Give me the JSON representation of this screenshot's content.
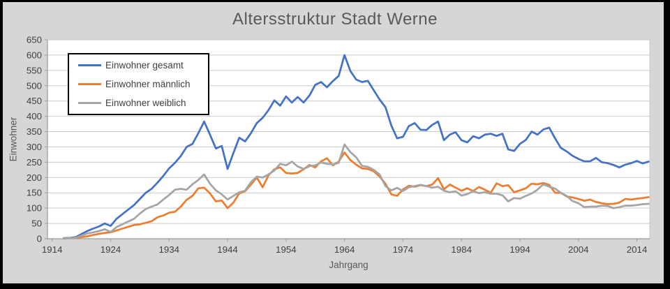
{
  "window": {
    "background_color": "#d6d6d6",
    "border_color": "#000000"
  },
  "text_colors": {
    "title": "#595959",
    "axis_titles": "#595959",
    "tick_labels": "#404040",
    "legend_labels": "#3f3f3f"
  },
  "chart_data": {
    "type": "line",
    "title": "Altersstruktur Stadt Werne",
    "xlabel": "Jahrgang",
    "ylabel": "Einwohner",
    "xlim": [
      1913.2,
      2016.2
    ],
    "ylim": [
      0,
      650
    ],
    "xticks": [
      1914,
      1924,
      1934,
      1944,
      1954,
      1964,
      1974,
      1984,
      1994,
      2004,
      2014
    ],
    "yticks": [
      0,
      50,
      100,
      150,
      200,
      250,
      300,
      350,
      400,
      450,
      500,
      550,
      600,
      650
    ],
    "grid": true,
    "gridline_color": "#c9c9c9",
    "axis_line_color": "#9b9b9b",
    "plot_background": "#ffffff",
    "legend_position": "top-left-inside",
    "x": [
      1916,
      1917,
      1918,
      1919,
      1920,
      1921,
      1922,
      1923,
      1924,
      1925,
      1926,
      1927,
      1928,
      1929,
      1930,
      1931,
      1932,
      1933,
      1934,
      1935,
      1936,
      1937,
      1938,
      1939,
      1940,
      1941,
      1942,
      1943,
      1944,
      1945,
      1946,
      1947,
      1948,
      1949,
      1950,
      1951,
      1952,
      1953,
      1954,
      1955,
      1956,
      1957,
      1958,
      1959,
      1960,
      1961,
      1962,
      1963,
      1964,
      1965,
      1966,
      1967,
      1968,
      1969,
      1970,
      1971,
      1972,
      1973,
      1974,
      1975,
      1976,
      1977,
      1978,
      1979,
      1980,
      1981,
      1982,
      1983,
      1984,
      1985,
      1986,
      1987,
      1988,
      1989,
      1990,
      1991,
      1992,
      1993,
      1994,
      1995,
      1996,
      1997,
      1998,
      1999,
      2000,
      2001,
      2002,
      2003,
      2004,
      2005,
      2006,
      2007,
      2008,
      2009,
      2010,
      2011,
      2012,
      2013,
      2014,
      2015,
      2016
    ],
    "series": [
      {
        "name": "Einwohner gesamt",
        "color": "#4472c4",
        "values": [
          2,
          3,
          5,
          15,
          25,
          33,
          40,
          50,
          42,
          65,
          80,
          95,
          110,
          130,
          150,
          163,
          183,
          205,
          230,
          248,
          270,
          300,
          310,
          345,
          383,
          340,
          295,
          303,
          228,
          280,
          330,
          318,
          345,
          378,
          395,
          420,
          452,
          435,
          465,
          445,
          463,
          445,
          468,
          503,
          512,
          495,
          515,
          532,
          600,
          548,
          520,
          512,
          516,
          485,
          455,
          430,
          370,
          328,
          333,
          368,
          378,
          356,
          355,
          372,
          383,
          322,
          340,
          348,
          322,
          315,
          335,
          328,
          340,
          343,
          336,
          343,
          292,
          287,
          310,
          323,
          350,
          340,
          357,
          363,
          328,
          297,
          285,
          271,
          261,
          253,
          253,
          264,
          250,
          247,
          241,
          233,
          242,
          247,
          254,
          246,
          252
        ]
      },
      {
        "name": "Einwohner männlich",
        "color": "#ed7d31",
        "values": [
          1,
          2,
          2,
          5,
          8,
          12,
          16,
          19,
          21,
          27,
          33,
          39,
          45,
          47,
          52,
          57,
          70,
          76,
          85,
          88,
          105,
          127,
          140,
          165,
          167,
          148,
          122,
          125,
          100,
          118,
          148,
          155,
          177,
          200,
          168,
          207,
          227,
          233,
          215,
          213,
          215,
          227,
          241,
          233,
          253,
          263,
          240,
          252,
          282,
          257,
          242,
          230,
          228,
          220,
          203,
          180,
          145,
          140,
          161,
          173,
          170,
          175,
          172,
          177,
          198,
          162,
          177,
          167,
          157,
          165,
          156,
          169,
          160,
          150,
          181,
          172,
          175,
          152,
          158,
          165,
          180,
          178,
          182,
          176,
          150,
          150,
          138,
          135,
          130,
          124,
          128,
          120,
          116,
          113,
          114,
          118,
          130,
          128,
          131,
          133,
          136
        ]
      },
      {
        "name": "Einwohner weiblich",
        "color": "#a5a5a5",
        "values": [
          1,
          2,
          3,
          10,
          17,
          21,
          25,
          31,
          22,
          38,
          47,
          56,
          65,
          82,
          97,
          105,
          112,
          128,
          143,
          160,
          163,
          160,
          178,
          192,
          210,
          180,
          158,
          145,
          128,
          140,
          152,
          157,
          185,
          203,
          200,
          210,
          223,
          245,
          240,
          252,
          236,
          228,
          237,
          240,
          249,
          245,
          243,
          248,
          308,
          283,
          266,
          238,
          235,
          225,
          210,
          172,
          158,
          166,
          156,
          168,
          172,
          176,
          172,
          167,
          170,
          157,
          152,
          155,
          141,
          146,
          155,
          149,
          152,
          147,
          147,
          142,
          122,
          133,
          131,
          140,
          148,
          160,
          178,
          170,
          164,
          150,
          140,
          123,
          116,
          103,
          105,
          105,
          108,
          107,
          100,
          103,
          108,
          108,
          110,
          113,
          114
        ]
      }
    ]
  }
}
